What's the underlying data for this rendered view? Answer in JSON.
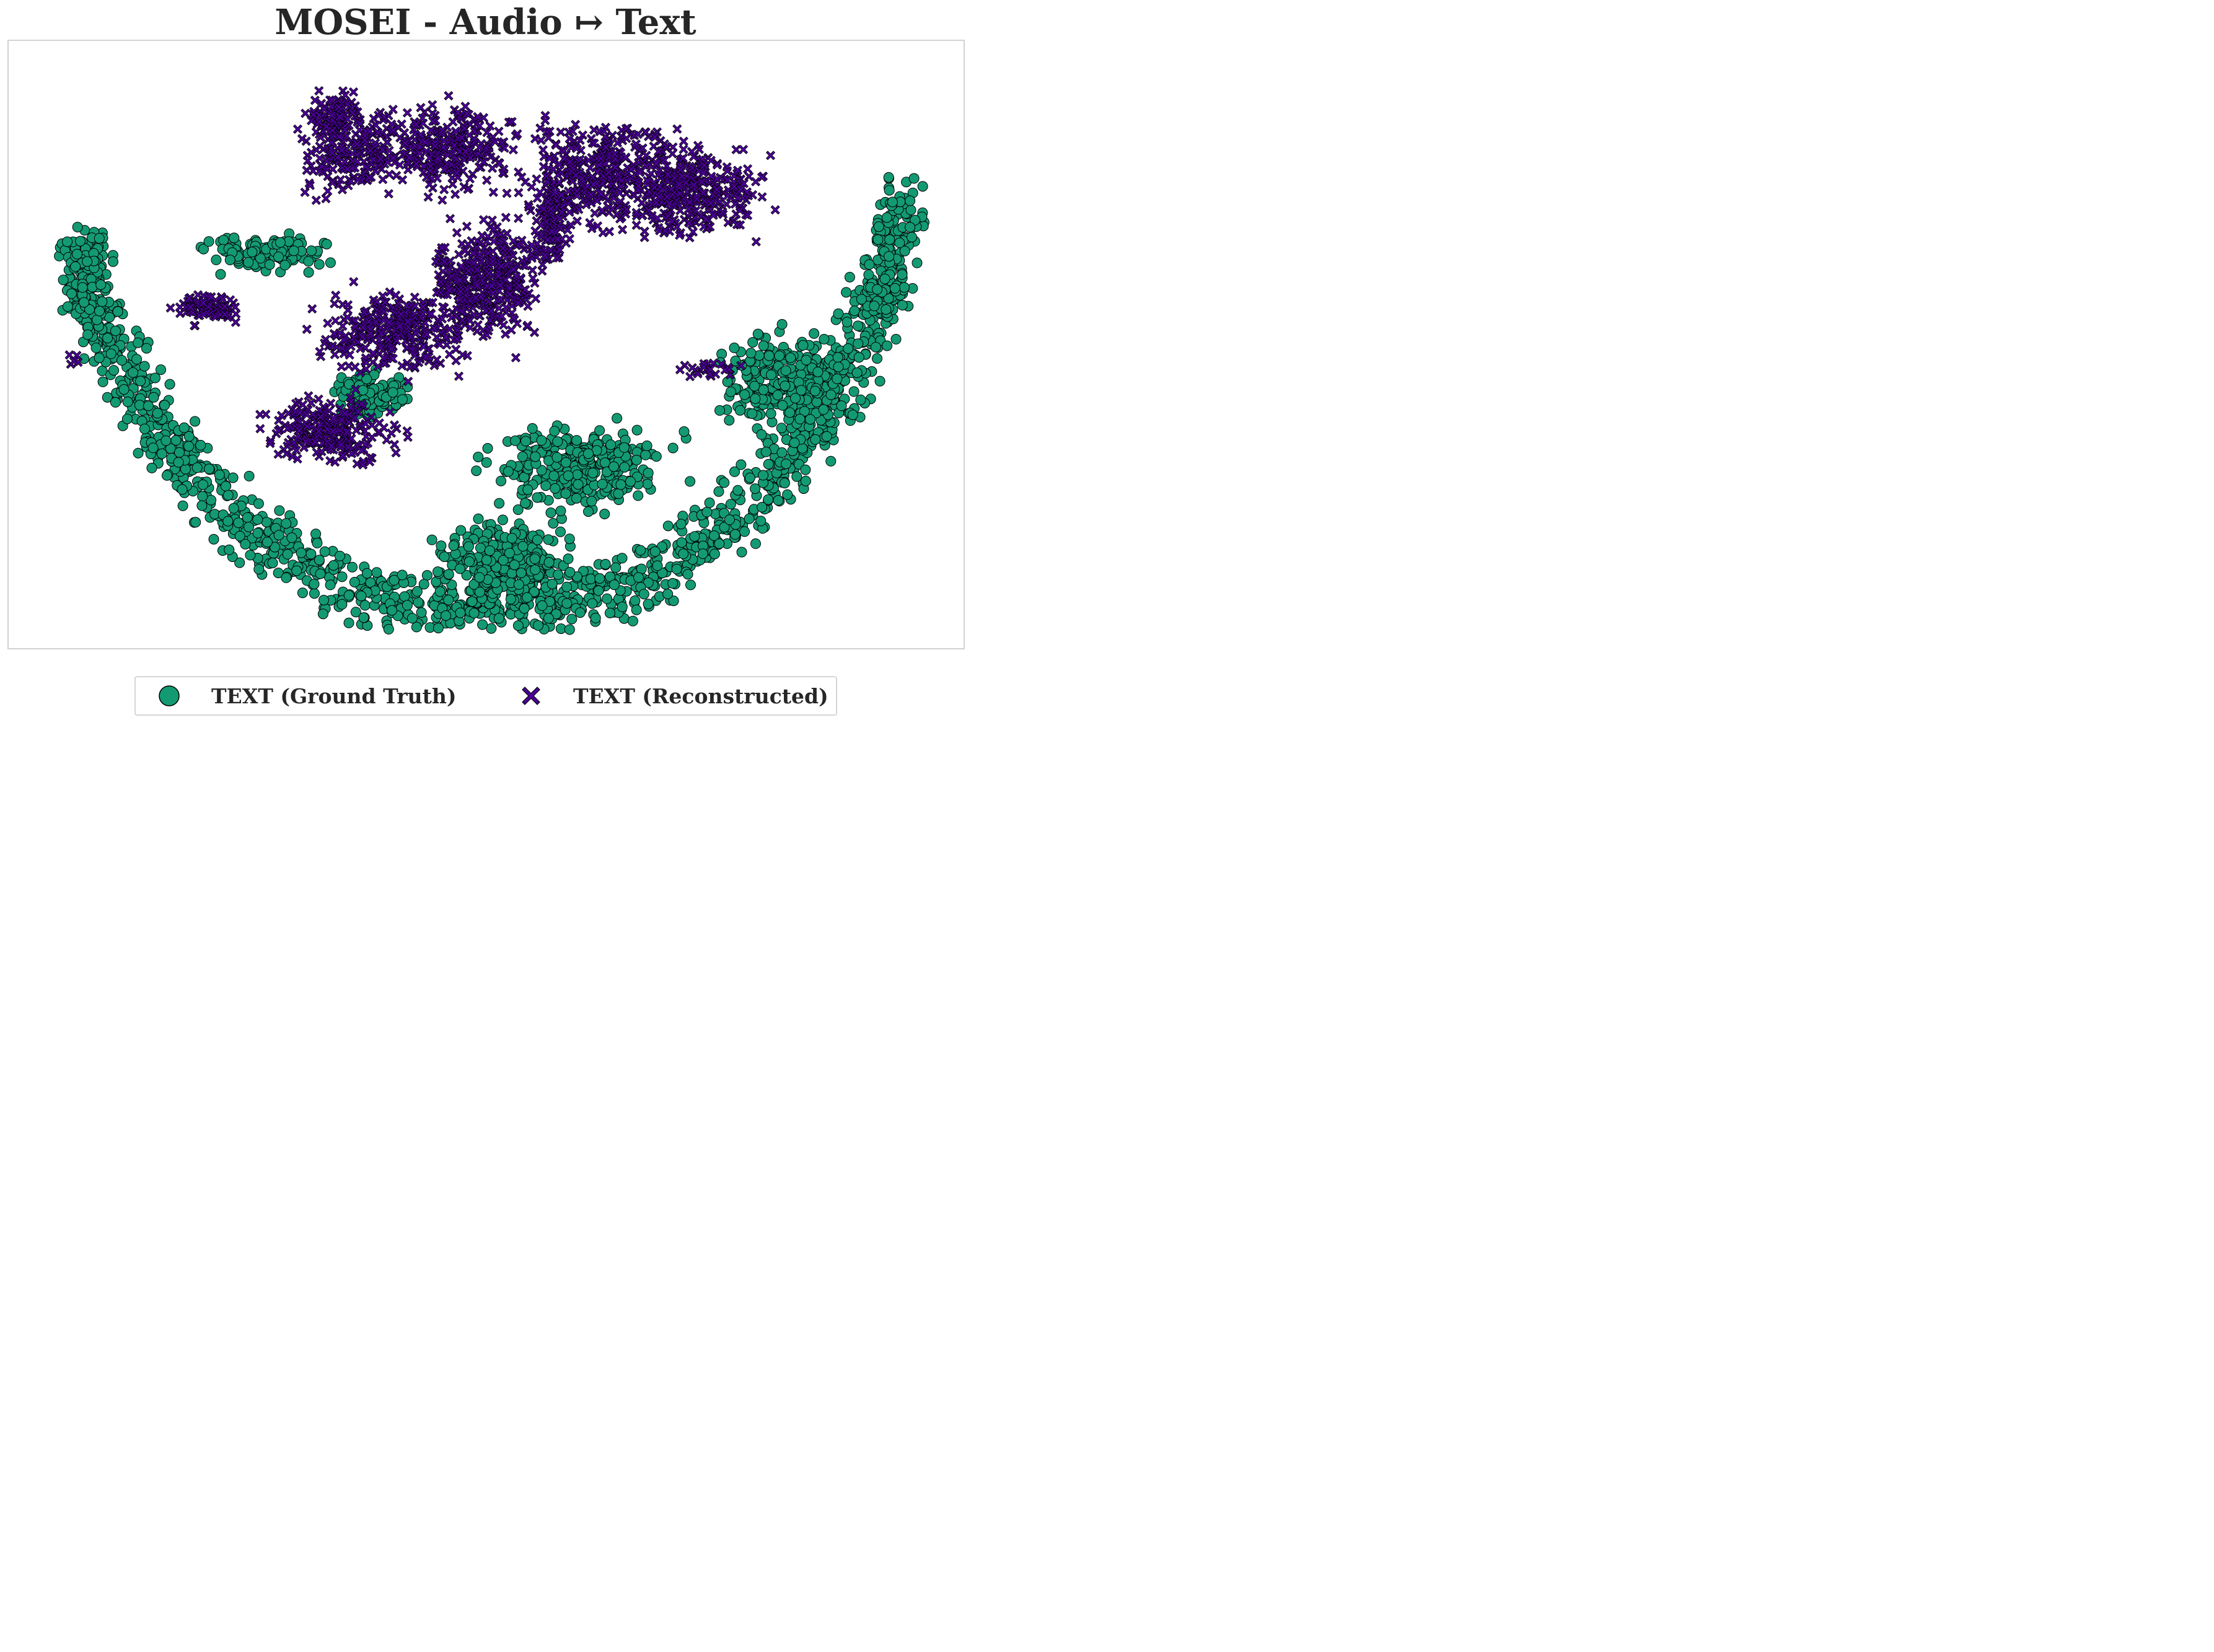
{
  "chart_data": {
    "type": "scatter",
    "title": "MOSEI - Audio ↦ Text",
    "xlabel": "",
    "ylabel": "",
    "grid": false,
    "ticks": false,
    "legend_placement": "bottom-center, below plot",
    "series": [
      {
        "name": "TEXT (Ground Truth)",
        "marker": "circle",
        "color": "#139a73",
        "regions": [
          {
            "shape": "arc",
            "cx": 0.5,
            "cy": 0.12,
            "rx": 0.44,
            "ry": 0.82,
            "a0": 0.08,
            "a1": 0.96,
            "thick": 0.1,
            "n": 1400
          },
          {
            "shape": "blob",
            "cx": 0.52,
            "cy": 0.86,
            "rx": 0.09,
            "ry": 0.09,
            "n": 300
          },
          {
            "shape": "blob",
            "cx": 0.6,
            "cy": 0.7,
            "rx": 0.12,
            "ry": 0.1,
            "n": 300
          },
          {
            "shape": "blob",
            "cx": 0.82,
            "cy": 0.56,
            "rx": 0.1,
            "ry": 0.1,
            "n": 280
          },
          {
            "shape": "blob",
            "cx": 0.92,
            "cy": 0.42,
            "rx": 0.04,
            "ry": 0.05,
            "n": 90
          },
          {
            "shape": "blob",
            "cx": 0.27,
            "cy": 0.35,
            "rx": 0.09,
            "ry": 0.04,
            "n": 130
          },
          {
            "shape": "blob",
            "cx": 0.38,
            "cy": 0.58,
            "rx": 0.05,
            "ry": 0.06,
            "n": 90
          },
          {
            "shape": "blob",
            "cx": 0.08,
            "cy": 0.4,
            "rx": 0.03,
            "ry": 0.12,
            "n": 120
          }
        ]
      },
      {
        "name": "TEXT (Reconstructed)",
        "marker": "x",
        "color": "#4c0099",
        "regions": [
          {
            "shape": "blob",
            "cx": 0.36,
            "cy": 0.18,
            "rx": 0.08,
            "ry": 0.1,
            "n": 220
          },
          {
            "shape": "blob",
            "cx": 0.46,
            "cy": 0.18,
            "rx": 0.09,
            "ry": 0.1,
            "n": 260
          },
          {
            "shape": "blob",
            "cx": 0.62,
            "cy": 0.22,
            "rx": 0.12,
            "ry": 0.12,
            "n": 360
          },
          {
            "shape": "blob",
            "cx": 0.72,
            "cy": 0.25,
            "rx": 0.1,
            "ry": 0.1,
            "n": 280
          },
          {
            "shape": "blob",
            "cx": 0.5,
            "cy": 0.4,
            "rx": 0.08,
            "ry": 0.14,
            "n": 360
          },
          {
            "shape": "blob",
            "cx": 0.4,
            "cy": 0.48,
            "rx": 0.1,
            "ry": 0.09,
            "n": 300
          },
          {
            "shape": "blob",
            "cx": 0.34,
            "cy": 0.64,
            "rx": 0.09,
            "ry": 0.08,
            "n": 240
          },
          {
            "shape": "blob",
            "cx": 0.21,
            "cy": 0.44,
            "rx": 0.05,
            "ry": 0.03,
            "n": 90
          },
          {
            "shape": "blob",
            "cx": 0.57,
            "cy": 0.3,
            "rx": 0.03,
            "ry": 0.1,
            "n": 120
          },
          {
            "shape": "blob",
            "cx": 0.34,
            "cy": 0.12,
            "rx": 0.03,
            "ry": 0.05,
            "n": 60
          },
          {
            "shape": "blob",
            "cx": 0.07,
            "cy": 0.53,
            "rx": 0.01,
            "ry": 0.02,
            "n": 5
          },
          {
            "shape": "blob",
            "cx": 0.73,
            "cy": 0.54,
            "rx": 0.05,
            "ry": 0.02,
            "n": 25
          }
        ]
      }
    ]
  }
}
